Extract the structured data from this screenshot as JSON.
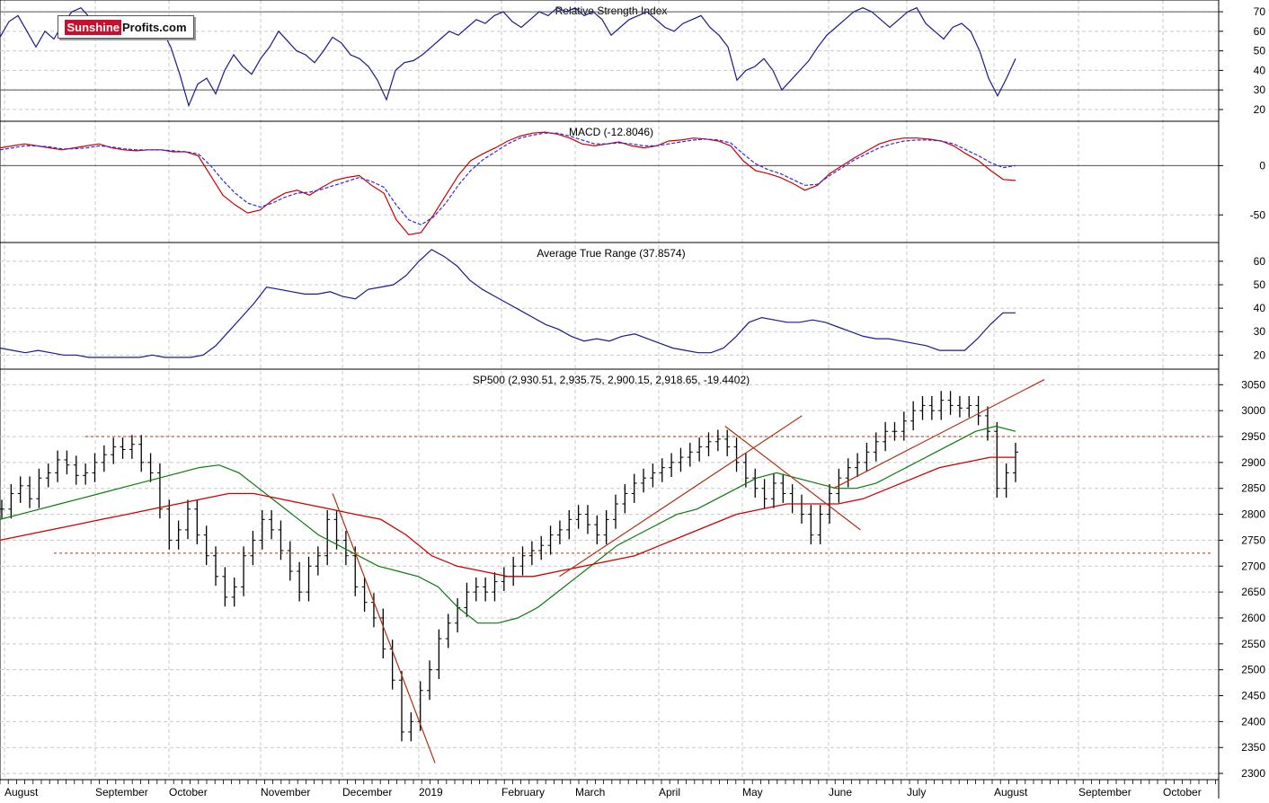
{
  "logo": {
    "part1": "Sunshine",
    "part2": "Profits.com"
  },
  "colors": {
    "grid": "#c8c8c8",
    "frame": "#000000",
    "line": "#1a1a8c",
    "red": "#cc0000",
    "green": "#0a7a0a",
    "blue_dash": "#2a2aee",
    "bar": "#000000",
    "trend": "#b03010"
  },
  "x_axis": {
    "labels": [
      "August",
      "September",
      "October",
      "November",
      "December",
      "2019",
      "February",
      "March",
      "April",
      "May",
      "June",
      "July",
      "August",
      "September",
      "October"
    ]
  },
  "chart_data": [
    {
      "type": "line",
      "title": "Relative Strength Index",
      "ylim": [
        14,
        76
      ],
      "yticks": [
        20,
        30,
        40,
        50,
        60,
        70
      ],
      "reference_lines": [
        30,
        70
      ],
      "series": [
        {
          "values": [
            57,
            65,
            68,
            60,
            52,
            60,
            56,
            64,
            70,
            72,
            67,
            58,
            62,
            66,
            63,
            60,
            65,
            67,
            61,
            52,
            38,
            22,
            33,
            36,
            28,
            40,
            48,
            42,
            38,
            46,
            52,
            60,
            55,
            50,
            48,
            44,
            50,
            57,
            54,
            48,
            46,
            42,
            35,
            25,
            40,
            44,
            45,
            48,
            52,
            56,
            60,
            58,
            62,
            66,
            64,
            68,
            70,
            65,
            62,
            66,
            70,
            68,
            72,
            70,
            72,
            68,
            70,
            66,
            58,
            62,
            66,
            68,
            70,
            66,
            62,
            60,
            64,
            66,
            68,
            62,
            58,
            52,
            35,
            40,
            42,
            46,
            40,
            30,
            35,
            40,
            45,
            52,
            58,
            62,
            66,
            70,
            72,
            70,
            66,
            62,
            66,
            70,
            72,
            64,
            60,
            56,
            62,
            64,
            60,
            50,
            36,
            27,
            36,
            46
          ]
        }
      ]
    },
    {
      "type": "line",
      "title": "MACD (-12.8046)",
      "ylim": [
        -78,
        45
      ],
      "yticks": [
        0,
        -50
      ],
      "series": [
        {
          "values": [
            18,
            20,
            22,
            20,
            18,
            16,
            18,
            20,
            22,
            18,
            16,
            15,
            16,
            16,
            14,
            14,
            10,
            -10,
            -30,
            -40,
            -48,
            -45,
            -35,
            -28,
            -25,
            -30,
            -22,
            -15,
            -12,
            -10,
            -20,
            -28,
            -55,
            -70,
            -68,
            -50,
            -30,
            -10,
            5,
            12,
            18,
            25,
            30,
            33,
            34,
            32,
            28,
            22,
            20,
            22,
            24,
            20,
            18,
            20,
            25,
            26,
            28,
            27,
            25,
            20,
            5,
            -5,
            -8,
            -12,
            -18,
            -25,
            -20,
            -8,
            0,
            8,
            15,
            22,
            26,
            28,
            28,
            27,
            25,
            20,
            12,
            5,
            -5,
            -14,
            -15
          ]
        },
        {
          "values": [
            16,
            18,
            20,
            20,
            19,
            17,
            17,
            18,
            20,
            19,
            17,
            16,
            16,
            16,
            15,
            14,
            12,
            0,
            -15,
            -28,
            -38,
            -42,
            -38,
            -32,
            -28,
            -27,
            -24,
            -20,
            -16,
            -12,
            -16,
            -22,
            -40,
            -55,
            -60,
            -52,
            -38,
            -20,
            -5,
            6,
            14,
            22,
            28,
            31,
            33,
            33,
            30,
            26,
            22,
            22,
            23,
            22,
            20,
            20,
            22,
            24,
            26,
            27,
            26,
            23,
            12,
            2,
            -4,
            -8,
            -14,
            -20,
            -19,
            -10,
            -2,
            6,
            12,
            18,
            22,
            25,
            26,
            26,
            25,
            22,
            16,
            10,
            3,
            -2,
            0
          ]
        }
      ]
    },
    {
      "type": "line",
      "title": "Average True Range (37.8574)",
      "ylim": [
        14,
        68
      ],
      "yticks": [
        20,
        30,
        40,
        50,
        60
      ],
      "series": [
        {
          "values": [
            23,
            22,
            21,
            22,
            21,
            20,
            20,
            19,
            19,
            19,
            19,
            19,
            20,
            19,
            19,
            19,
            20,
            24,
            30,
            36,
            42,
            49,
            48,
            47,
            46,
            46,
            47,
            45,
            44,
            48,
            49,
            50,
            54,
            60,
            65,
            62,
            58,
            52,
            48,
            45,
            42,
            39,
            36,
            33,
            31,
            28,
            26,
            27,
            26,
            28,
            29,
            27,
            25,
            23,
            22,
            21,
            21,
            23,
            28,
            34,
            36,
            35,
            34,
            34,
            35,
            34,
            32,
            30,
            28,
            27,
            27,
            26,
            25,
            24,
            22,
            22,
            22,
            27,
            33,
            38,
            38
          ]
        }
      ]
    },
    {
      "type": "bar",
      "title": "SP500 (2,930.51, 2,935.75, 2,900.15, 2,918.65, -19.4402)",
      "ylim": [
        2288,
        3080
      ],
      "yticks": [
        2300,
        2350,
        2400,
        2450,
        2500,
        2550,
        2600,
        2650,
        2700,
        2750,
        2800,
        2850,
        2900,
        2950,
        3000,
        3050
      ],
      "ohlc_close": [
        2810,
        2840,
        2855,
        2830,
        2870,
        2880,
        2905,
        2895,
        2875,
        2880,
        2900,
        2915,
        2930,
        2925,
        2935,
        2900,
        2880,
        2810,
        2750,
        2770,
        2810,
        2760,
        2720,
        2680,
        2640,
        2660,
        2720,
        2750,
        2790,
        2770,
        2730,
        2690,
        2650,
        2700,
        2720,
        2790,
        2750,
        2720,
        2660,
        2630,
        2600,
        2540,
        2480,
        2380,
        2400,
        2460,
        2500,
        2560,
        2590,
        2620,
        2650,
        2660,
        2650,
        2670,
        2680,
        2700,
        2720,
        2730,
        2740,
        2760,
        2770,
        2790,
        2800,
        2780,
        2760,
        2790,
        2820,
        2840,
        2860,
        2870,
        2880,
        2890,
        2900,
        2910,
        2920,
        2930,
        2940,
        2945,
        2930,
        2900,
        2870,
        2850,
        2830,
        2860,
        2840,
        2820,
        2800,
        2760,
        2800,
        2840,
        2870,
        2890,
        2900,
        2920,
        2940,
        2960,
        2960,
        2980,
        3000,
        3010,
        3000,
        3020,
        3010,
        3005,
        3010,
        2990,
        2960,
        2850,
        2880,
        2920
      ],
      "ma_green": [
        2790,
        2800,
        2810,
        2820,
        2830,
        2840,
        2850,
        2860,
        2870,
        2880,
        2890,
        2895,
        2880,
        2850,
        2820,
        2790,
        2760,
        2740,
        2720,
        2700,
        2690,
        2680,
        2660,
        2620,
        2590,
        2590,
        2600,
        2620,
        2650,
        2680,
        2710,
        2740,
        2760,
        2780,
        2800,
        2810,
        2830,
        2850,
        2870,
        2880,
        2870,
        2860,
        2850,
        2850,
        2860,
        2880,
        2900,
        2920,
        2940,
        2960,
        2970,
        2960
      ],
      "ma_red": [
        2750,
        2760,
        2770,
        2780,
        2790,
        2800,
        2810,
        2820,
        2830,
        2840,
        2840,
        2830,
        2820,
        2810,
        2800,
        2790,
        2760,
        2720,
        2700,
        2690,
        2680,
        2680,
        2690,
        2700,
        2710,
        2720,
        2740,
        2760,
        2780,
        2800,
        2810,
        2820,
        2820,
        2820,
        2830,
        2850,
        2870,
        2890,
        2900,
        2910,
        2910
      ],
      "reference_lines": [
        2950,
        2725
      ],
      "trendlines": [
        {
          "from": [
            0.273,
            2840
          ],
          "to": [
            0.357,
            2320
          ]
        },
        {
          "from": [
            0.459,
            2680
          ],
          "to": [
            0.658,
            2990
          ]
        },
        {
          "from": [
            0.595,
            2970
          ],
          "to": [
            0.706,
            2770
          ]
        },
        {
          "from": [
            0.684,
            2850
          ],
          "to": [
            0.857,
            3060
          ]
        }
      ]
    }
  ]
}
